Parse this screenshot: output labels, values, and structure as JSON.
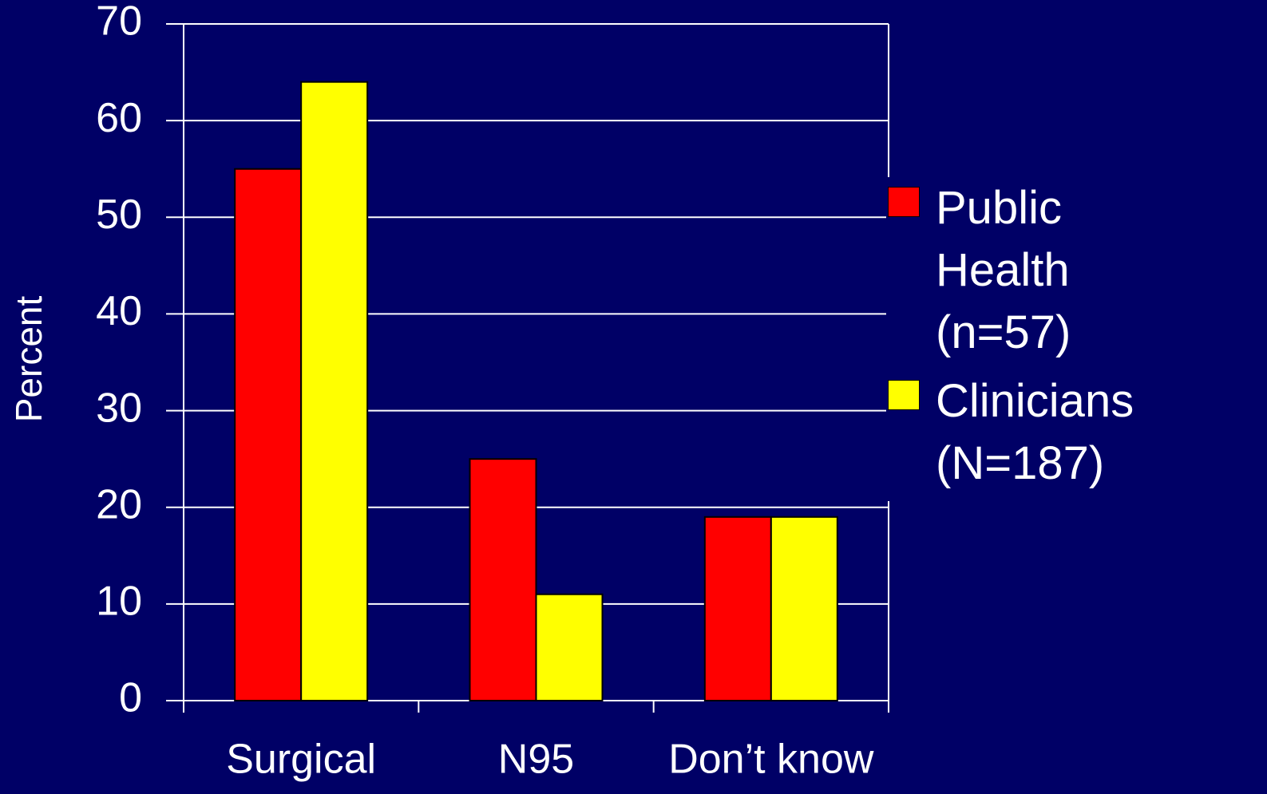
{
  "chart_data": {
    "type": "bar",
    "y_label": "Percent",
    "categories": [
      "Surgical",
      "N95",
      "Don’t know"
    ],
    "series": [
      {
        "name": "Public Health (n=57)",
        "color": "#ff0000",
        "values": [
          55,
          25,
          19
        ]
      },
      {
        "name": "Clinicians (N=187)",
        "color": "#ffff00",
        "values": [
          64,
          11,
          19
        ]
      }
    ],
    "ylim": [
      0,
      70
    ],
    "yticks": [
      0,
      10,
      20,
      30,
      40,
      50,
      60,
      70
    ],
    "grid": true,
    "legend": "right"
  }
}
